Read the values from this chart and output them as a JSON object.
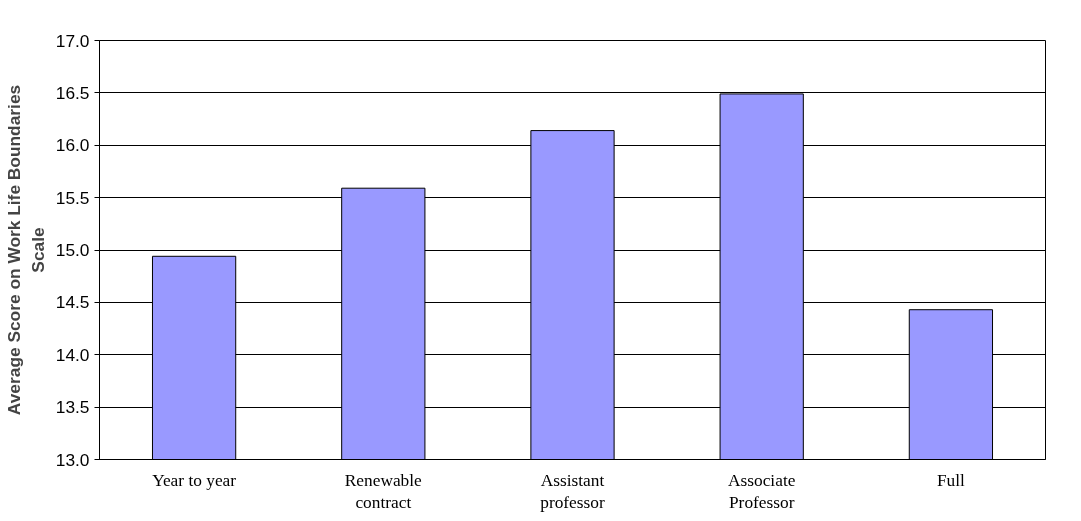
{
  "chart_data": {
    "type": "bar",
    "ylabel": "Average Score on Work Life Boundaries Scale",
    "categories": [
      "Year to year",
      "Renewable contract",
      "Assistant professor",
      "Associate Professor",
      "Full"
    ],
    "values": [
      14.94,
      15.59,
      16.14,
      16.49,
      14.43
    ],
    "color": "#9999ff",
    "ylim": [
      13.0,
      17.0
    ],
    "yticks": [
      {
        "value": 13.0,
        "label": "13.0"
      },
      {
        "value": 13.5,
        "label": "13.5"
      },
      {
        "value": 14.0,
        "label": "14.0"
      },
      {
        "value": 14.5,
        "label": "14.5"
      },
      {
        "value": 15.0,
        "label": "15.0"
      },
      {
        "value": 15.5,
        "label": "15.5"
      },
      {
        "value": 16.0,
        "label": "16.0"
      },
      {
        "value": 16.5,
        "label": "16.5"
      },
      {
        "value": 17.0,
        "label": "17.0"
      }
    ],
    "grid": "y"
  }
}
